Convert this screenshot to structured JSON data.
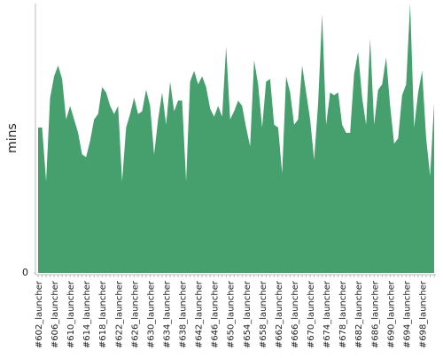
{
  "chart_data": {
    "type": "area",
    "y_label": "mins",
    "color": "#45a06d",
    "categories": [
      "#602_launcher",
      null,
      null,
      null,
      "#606_launcher",
      null,
      null,
      null,
      "#610_launcher",
      null,
      null,
      null,
      "#614_launcher",
      null,
      null,
      null,
      "#618_launcher",
      null,
      null,
      null,
      "#622_launcher",
      null,
      null,
      null,
      "#626_launcher",
      null,
      null,
      null,
      "#630_launcher",
      null,
      null,
      null,
      "#634_launcher",
      null,
      null,
      null,
      "#638_launcher",
      null,
      null,
      null,
      "#642_launcher",
      null,
      null,
      null,
      "#646_launcher",
      null,
      null,
      null,
      "#650_launcher",
      null,
      null,
      null,
      "#654_launcher",
      null,
      null,
      null,
      "#658_launcher",
      null,
      null,
      null,
      "#662_launcher",
      null,
      null,
      null,
      "#666_launcher",
      null,
      null,
      null,
      "#670_launcher",
      null,
      null,
      null,
      "#674_launcher",
      null,
      null,
      null,
      "#678_launcher",
      null,
      null,
      null,
      "#682_launcher",
      null,
      null,
      null,
      "#686_launcher",
      null,
      null,
      null,
      "#690_launcher",
      null,
      null,
      null,
      "#694_launcher",
      null,
      null,
      null,
      "#698_launcher",
      null,
      null,
      null
    ],
    "values": [
      54,
      54,
      34,
      65,
      73,
      77,
      72,
      57,
      62,
      57,
      52,
      44,
      43,
      49,
      57,
      59,
      69,
      67,
      62,
      59,
      62,
      34,
      54,
      59,
      65,
      59,
      60,
      68,
      62,
      44,
      57,
      67,
      55,
      71,
      60,
      64,
      64,
      34,
      71,
      75,
      70,
      73,
      69,
      61,
      58,
      62,
      58,
      84,
      57,
      60,
      64,
      62,
      54,
      47,
      79,
      70,
      54,
      71,
      72,
      55,
      54,
      37,
      73,
      67,
      55,
      57,
      77,
      67,
      57,
      42,
      63,
      96,
      55,
      67,
      66,
      67,
      55,
      52,
      52,
      74,
      82,
      65,
      55,
      87,
      55,
      68,
      70,
      80,
      62,
      48,
      50,
      66,
      70,
      100,
      54,
      67,
      75,
      50,
      36,
      63
    ],
    "ylim": [
      0,
      100
    ],
    "yticks": [
      0
    ]
  }
}
